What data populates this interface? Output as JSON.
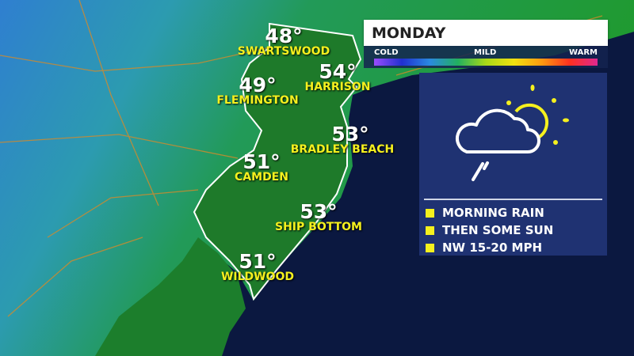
{
  "header": {
    "day": "MONDAY"
  },
  "legend": {
    "cold": "COLD",
    "mild": "MILD",
    "warm": "WARM"
  },
  "colors": {
    "land_cold": "#2f7fd0",
    "land_mild": "#1d8a2a",
    "ocean": "#0b1840",
    "label": "#f5f01e",
    "panel": "#1f3272"
  },
  "cities": [
    {
      "name": "SWARTSWOOD",
      "temp": "48°"
    },
    {
      "name": "HARRISON",
      "temp": "54°"
    },
    {
      "name": "FLEMINGTON",
      "temp": "49°"
    },
    {
      "name": "BRADLEY BEACH",
      "temp": "53°"
    },
    {
      "name": "CAMDEN",
      "temp": "51°"
    },
    {
      "name": "SHIP BOTTOM",
      "temp": "53°"
    },
    {
      "name": "WILDWOOD",
      "temp": "51°"
    }
  ],
  "forecast": {
    "icon": "cloud-sun-rain-icon",
    "items": [
      "MORNING RAIN",
      "THEN SOME SUN",
      "NW 15-20 MPH"
    ]
  }
}
